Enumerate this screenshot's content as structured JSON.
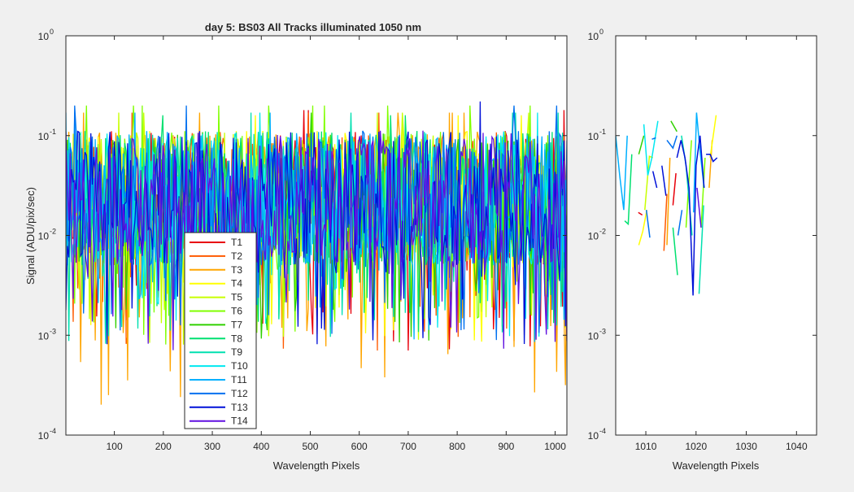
{
  "chart_data": [
    {
      "type": "line",
      "title": "day 5: BS03   All Tracks illuminated   1050 nm",
      "xlabel": "Wavelength Pixels",
      "ylabel": "Signal (ADU/pix/sec)",
      "xlim": [
        1,
        1024
      ],
      "ylim": [
        0.0001,
        1
      ],
      "yscale": "log",
      "xticks": [
        100,
        200,
        300,
        400,
        500,
        600,
        700,
        800,
        900,
        1000
      ],
      "xtick_labels": [
        "100",
        "200",
        "300",
        "400",
        "500",
        "600",
        "700",
        "800",
        "900",
        "1000"
      ],
      "yticks": [
        0.0001,
        0.001,
        0.01,
        0.1,
        1
      ],
      "ytick_labels": [
        "10",
        "10",
        "10",
        "10",
        "10"
      ],
      "ytick_exponents": [
        "-4",
        "-3",
        "-2",
        "-1",
        "0"
      ],
      "legend_position": "lower-left",
      "series_note": "14 noisy per-pixel signal traces; values approx. between 2e-4 and 2.2e-1, typical range 1e-3 to 1.5e-1",
      "series": [
        {
          "name": "T1",
          "color": "#e8000b",
          "values_range": [
            0.0007,
            0.18
          ]
        },
        {
          "name": "T2",
          "color": "#ff5a00",
          "values_range": [
            0.0007,
            0.17
          ]
        },
        {
          "name": "T3",
          "color": "#ffa500",
          "values_range": [
            0.0002,
            0.17
          ]
        },
        {
          "name": "T4",
          "color": "#ffff00",
          "values_range": [
            0.0008,
            0.16
          ]
        },
        {
          "name": "T5",
          "color": "#c8ff00",
          "values_range": [
            0.0008,
            0.17
          ]
        },
        {
          "name": "T6",
          "color": "#80ff00",
          "values_range": [
            0.0008,
            0.2
          ]
        },
        {
          "name": "T7",
          "color": "#30d000",
          "values_range": [
            0.0008,
            0.17
          ]
        },
        {
          "name": "T8",
          "color": "#00e070",
          "values_range": [
            0.0008,
            0.16
          ]
        },
        {
          "name": "T9",
          "color": "#00e0b0",
          "values_range": [
            0.0008,
            0.17
          ]
        },
        {
          "name": "T10",
          "color": "#00e8f0",
          "values_range": [
            0.0008,
            0.17
          ]
        },
        {
          "name": "T11",
          "color": "#00b0ff",
          "values_range": [
            0.0008,
            0.17
          ]
        },
        {
          "name": "T12",
          "color": "#0070f0",
          "values_range": [
            0.0008,
            0.2
          ]
        },
        {
          "name": "T13",
          "color": "#0010d8",
          "values_range": [
            0.0008,
            0.22
          ]
        },
        {
          "name": "T14",
          "color": "#6010e0",
          "values_range": [
            0.0007,
            0.17
          ]
        }
      ]
    },
    {
      "type": "line",
      "title": "",
      "xlabel": "Wavelength Pixels",
      "ylabel": "",
      "xlim": [
        1004,
        1044
      ],
      "ylim": [
        0.0001,
        1
      ],
      "yscale": "log",
      "xticks": [
        1010,
        1020,
        1030,
        1040
      ],
      "xtick_labels": [
        "1010",
        "1020",
        "1030",
        "1040"
      ],
      "yticks": [
        0.0001,
        0.001,
        0.01,
        0.1,
        1
      ],
      "ytick_labels": [
        "10",
        "10",
        "10",
        "10",
        "10"
      ],
      "ytick_exponents": [
        "-4",
        "-3",
        "-2",
        "-1",
        "0"
      ],
      "segments": [
        {
          "series": "T1",
          "x": [
            1008.5,
            1009.3
          ],
          "y": [
            0.017,
            0.016
          ]
        },
        {
          "series": "T1",
          "x": [
            1015.4,
            1016.0
          ],
          "y": [
            0.02,
            0.042
          ]
        },
        {
          "series": "T2",
          "x": [
            1013.6,
            1014.2
          ],
          "y": [
            0.007,
            0.026
          ]
        },
        {
          "series": "T3",
          "x": [
            1014.2,
            1014.8
          ],
          "y": [
            0.008,
            0.06
          ]
        },
        {
          "series": "T3",
          "x": [
            1022.6,
            1023.2
          ],
          "y": [
            0.03,
            0.09
          ]
        },
        {
          "series": "T4",
          "x": [
            1008.6,
            1009.4,
            1010.2
          ],
          "y": [
            0.008,
            0.011,
            0.018
          ]
        },
        {
          "series": "T4",
          "x": [
            1022.8,
            1024.0
          ],
          "y": [
            0.06,
            0.16
          ]
        },
        {
          "series": "T5",
          "x": [
            1009.8,
            1010.7,
            1011.4
          ],
          "y": [
            0.018,
            0.062,
            0.06
          ]
        },
        {
          "series": "T6",
          "x": [
            1018.0,
            1019.1
          ],
          "y": [
            0.012,
            0.09
          ]
        },
        {
          "series": "T6",
          "x": [
            1021.0,
            1021.8
          ],
          "y": [
            0.012,
            0.06
          ]
        },
        {
          "series": "T7",
          "x": [
            1008.6,
            1009.6
          ],
          "y": [
            0.065,
            0.1
          ]
        },
        {
          "series": "T7",
          "x": [
            1015.0,
            1016.2
          ],
          "y": [
            0.14,
            0.11
          ]
        },
        {
          "series": "T8",
          "x": [
            1005.8,
            1006.5,
            1007.2
          ],
          "y": [
            0.014,
            0.013,
            0.065
          ]
        },
        {
          "series": "T8",
          "x": [
            1015.4,
            1016.3
          ],
          "y": [
            0.012,
            0.004
          ]
        },
        {
          "series": "T9",
          "x": [
            1017.1,
            1018.0,
            1019.2
          ],
          "y": [
            0.1,
            0.05,
            0.01
          ]
        },
        {
          "series": "T9",
          "x": [
            1020.6,
            1021.5
          ],
          "y": [
            0.0026,
            0.02
          ]
        },
        {
          "series": "T10",
          "x": [
            1009.6,
            1010.4,
            1011.2,
            1012.4
          ],
          "y": [
            0.13,
            0.04,
            0.06,
            0.14
          ]
        },
        {
          "series": "T11",
          "x": [
            1004.0,
            1004.8,
            1005.6,
            1006.3
          ],
          "y": [
            0.1,
            0.04,
            0.018,
            0.1
          ]
        },
        {
          "series": "T11",
          "x": [
            1019.5,
            1020.1,
            1020.8,
            1021.6
          ],
          "y": [
            0.017,
            0.17,
            0.07,
            0.03
          ]
        },
        {
          "series": "T12",
          "x": [
            1010.1,
            1010.8
          ],
          "y": [
            0.018,
            0.0095
          ]
        },
        {
          "series": "T12",
          "x": [
            1011.2,
            1012.0
          ],
          "y": [
            0.092,
            0.095
          ]
        },
        {
          "series": "T12",
          "x": [
            1014.2,
            1015.4,
            1016.2
          ],
          "y": [
            0.09,
            0.075,
            0.1
          ]
        },
        {
          "series": "T12",
          "x": [
            1016.4,
            1017.2
          ],
          "y": [
            0.01,
            0.018
          ]
        },
        {
          "series": "T13",
          "x": [
            1011.4,
            1012.2
          ],
          "y": [
            0.044,
            0.03
          ]
        },
        {
          "series": "T13",
          "x": [
            1013.2,
            1014.0
          ],
          "y": [
            0.05,
            0.025
          ]
        },
        {
          "series": "T13",
          "x": [
            1016.2,
            1017.0,
            1017.8,
            1018.6,
            1019.4,
            1020.0,
            1020.8,
            1021.6
          ],
          "y": [
            0.06,
            0.09,
            0.06,
            0.03,
            0.0025,
            0.05,
            0.1,
            0.03
          ]
        },
        {
          "series": "T13",
          "x": [
            1022.0,
            1022.8,
            1023.4,
            1024.2
          ],
          "y": [
            0.065,
            0.065,
            0.055,
            0.06
          ]
        },
        {
          "series": "T14",
          "x": [
            1020.2,
            1021.0
          ],
          "y": [
            0.03,
            0.012
          ]
        }
      ]
    }
  ]
}
